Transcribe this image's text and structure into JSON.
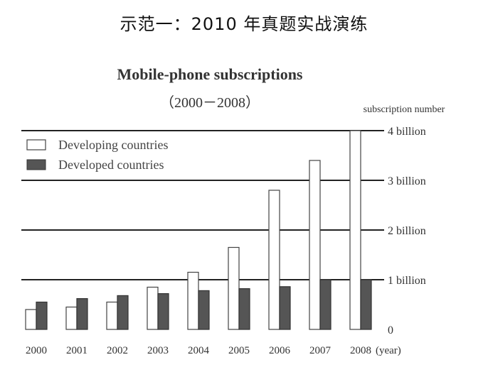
{
  "heading": "示范一：2010 年真题实战演练",
  "chart_data": {
    "type": "bar",
    "title": "Mobile-phone subscriptions",
    "subtitle": "（2000－2008）",
    "ylabel": "subscription number",
    "xlabel": "(year)",
    "categories": [
      "2000",
      "2001",
      "2002",
      "2003",
      "2004",
      "2005",
      "2006",
      "2007",
      "2008"
    ],
    "series": [
      {
        "name": "Developing countries",
        "values": [
          0.4,
          0.45,
          0.55,
          0.85,
          1.15,
          1.65,
          2.8,
          3.4,
          4.0
        ],
        "fill": "#ffffff"
      },
      {
        "name": "Developed countries",
        "values": [
          0.55,
          0.62,
          0.68,
          0.72,
          0.78,
          0.82,
          0.86,
          1.0,
          1.0
        ],
        "fill": "#555555"
      }
    ],
    "ylim": [
      0,
      4
    ],
    "yticks": [
      {
        "value": 0,
        "label": "0"
      },
      {
        "value": 1,
        "label": "1 billion"
      },
      {
        "value": 2,
        "label": "2 billion"
      },
      {
        "value": 3,
        "label": "3 billion"
      },
      {
        "value": 4,
        "label": "4 billion"
      }
    ],
    "grid": true,
    "legend_position": "top-left"
  }
}
